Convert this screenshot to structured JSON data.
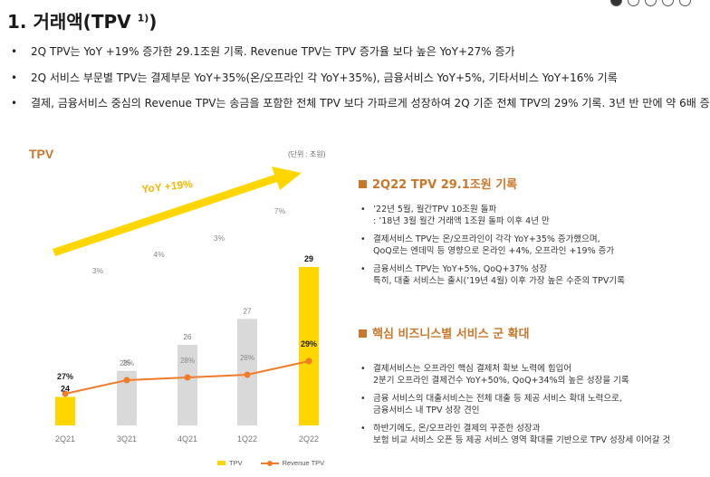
{
  "header": {
    "title": "1. 거래액(TPV ",
    "title_sup": "1)",
    "title_close": ")"
  },
  "bullets": [
    "2Q TPV는 YoY +19% 증가한 29.1조원 기록.  Revenue TPV는 TPV 증가율 보다 높은 YoY+27% 증가",
    "2Q 서비스 부문별 TPV는 결제부문 YoY+35%(온/오프라인 각 YoY+35%), 금융서비스 YoY+5%, 기타서비스 YoY+16% 기록",
    "결제, 금융서비스 중심의 Revenue TPV는 송금을 포함한 전체 TPV 보다 가파르게 성장하여 2Q 기준 전체 TPV의 29% 기록. 3년 반 만에 약 6배 증"
  ],
  "chart_data": {
    "type": "bar",
    "title": "TPV",
    "unit": "(단위 : 조원)",
    "categories": [
      "2Q21",
      "3Q21",
      "4Q21",
      "1Q22",
      "2Q22"
    ],
    "series": [
      {
        "name": "TPV",
        "values": [
          24,
          25,
          26,
          27,
          29
        ],
        "highlight": [
          true,
          false,
          false,
          false,
          true
        ]
      },
      {
        "name": "Revenue TPV",
        "values": [
          27,
          28,
          28,
          28,
          29
        ],
        "unit": "%"
      }
    ],
    "growth_labels": [
      "3%",
      "4%",
      "3%",
      "7%"
    ],
    "arrow_label": "YoY +19%",
    "colors": {
      "highlight": "#ffd600",
      "bar": "#d9d9d9",
      "line": "#f07b2a",
      "title": "#c8772b"
    }
  },
  "legend": {
    "tpv": "TPV",
    "rev": "Revenue TPV"
  },
  "sections": [
    {
      "title": "2Q22 TPV 29.1조원 기록",
      "items": [
        [
          "’22년 5월, 월간TPV 10조원 돌파",
          ": ’18년 3월 월간 거래액 1조원 돌파 이후 4년 만"
        ],
        [
          "결제서비스 TPV는 온/오프라인이 각각 YoY+35% 증가했으며,",
          "QoQ로는 엔데믹 등 영향으로 온라인 +4%, 오프라인 +19% 증가"
        ],
        [
          "금융서비스 TPV는 YoY+5%, QoQ+37% 성장",
          "특히, 대출 서비스는 출시(’19년 4월) 이후 가장 높은 수준의 TPV기록"
        ]
      ]
    },
    {
      "title": "핵심 비즈니스별 서비스 군 확대",
      "items": [
        [
          "결제서비스는 오프라인 핵심 결제처 확보 노력에 힘입어",
          "2분기 오프라인 결제건수 YoY+50%, QoQ+34%의 높은 성장을 기록"
        ],
        [
          "금융 서비스의 대출서비스는 전체 대출 등 제공 서비스 확대 노력으로,",
          "금융서비스 내 TPV 성장 견인"
        ],
        [
          "하반기에도, 온/오프라인 결제의 꾸준한 성장과",
          "보험 비교 서비스 오픈 등 제공 서비스 영역 확대를 기반으로 TPV 성장세 이어갈 것"
        ]
      ]
    }
  ]
}
